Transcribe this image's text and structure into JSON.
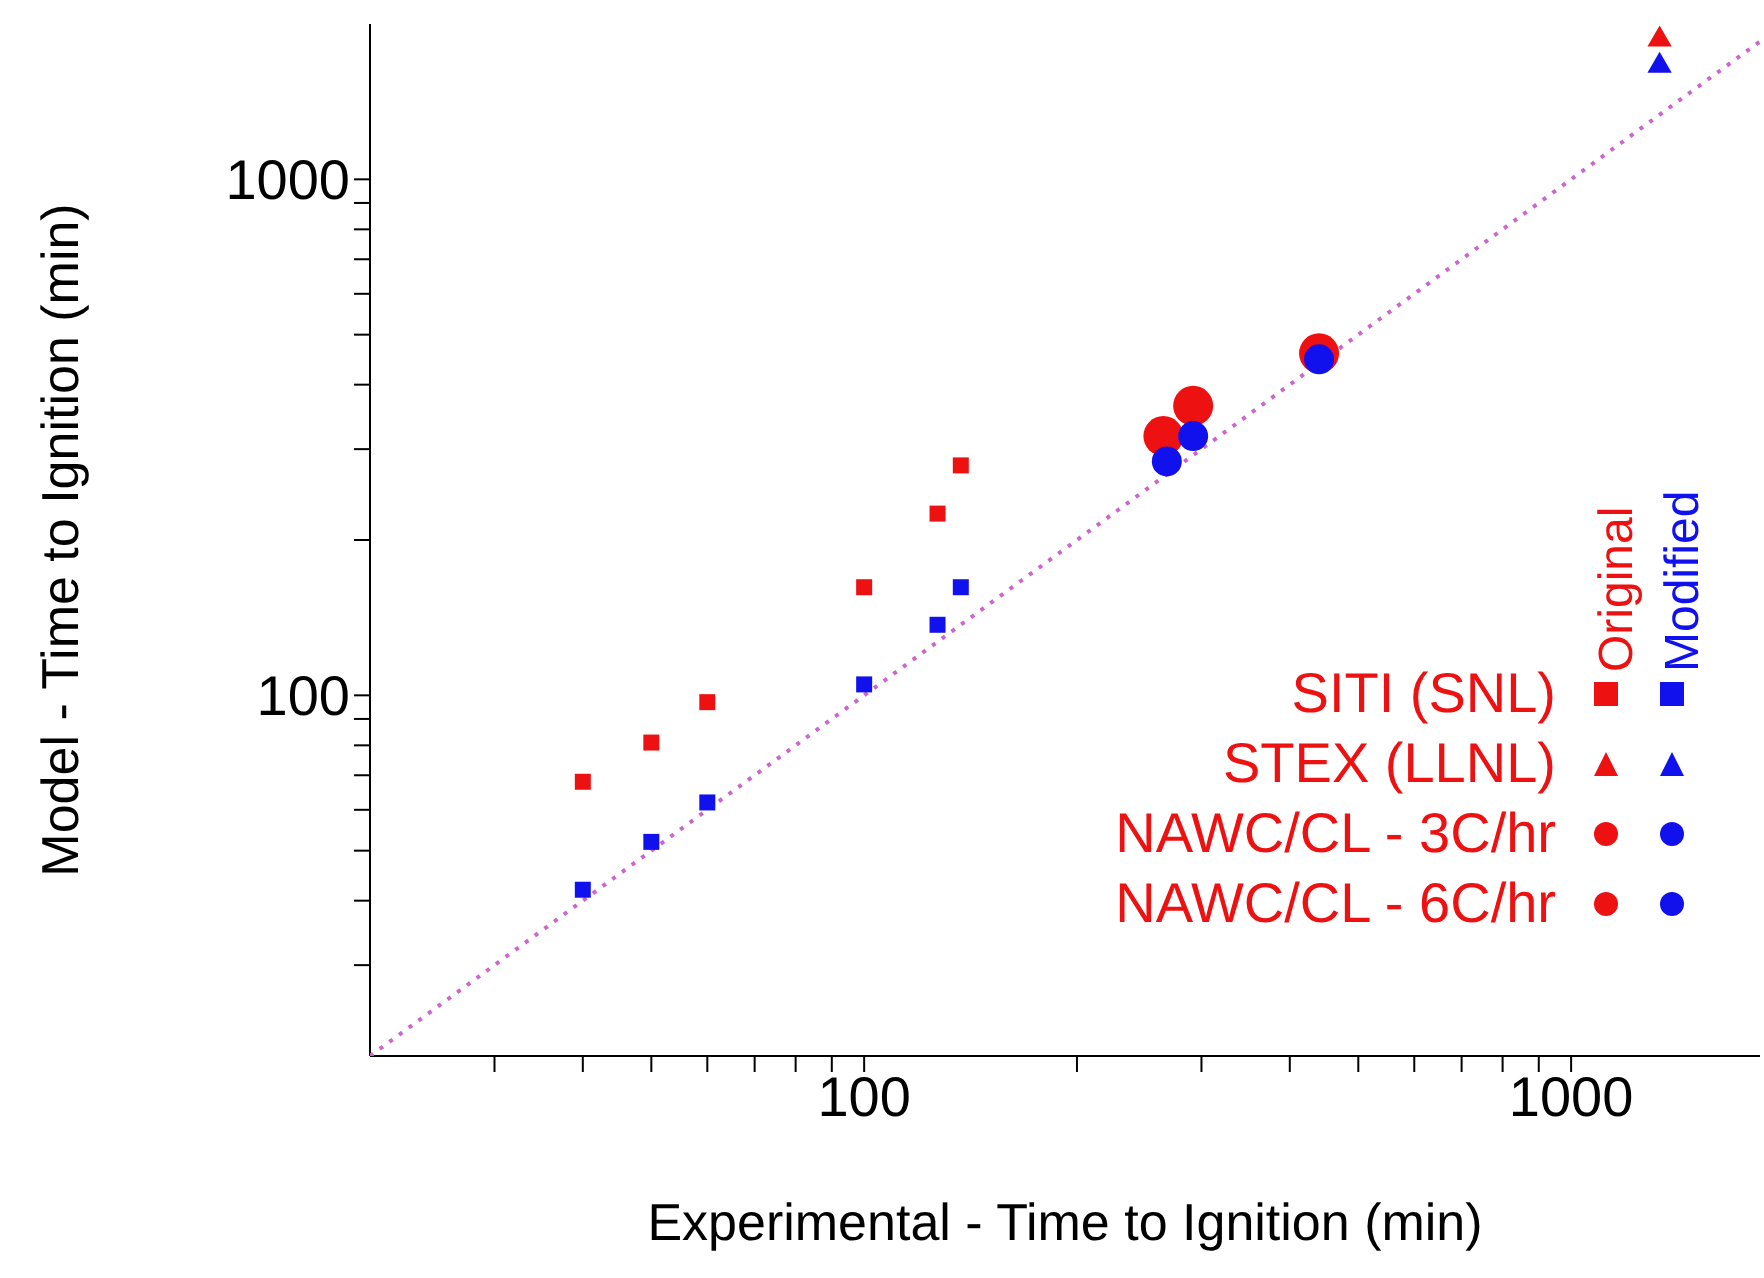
{
  "chart_data": {
    "type": "scatter",
    "xlabel": "Experimental - Time to Ignition (min)",
    "ylabel": "Model - Time to Ignition (min)",
    "log": "xy",
    "xlim": [
      20,
      1850
    ],
    "ylim": [
      20,
      2000
    ],
    "xticks": [
      {
        "value": 30,
        "label": null
      },
      {
        "value": 40,
        "label": null
      },
      {
        "value": 50,
        "label": null
      },
      {
        "value": 60,
        "label": null
      },
      {
        "value": 70,
        "label": null
      },
      {
        "value": 80,
        "label": null
      },
      {
        "value": 90,
        "label": null
      },
      100,
      {
        "value": 200,
        "label": null
      },
      {
        "value": 300,
        "label": null
      },
      {
        "value": 400,
        "label": null
      },
      {
        "value": 500,
        "label": null
      },
      {
        "value": 600,
        "label": null
      },
      {
        "value": 700,
        "label": null
      },
      {
        "value": 800,
        "label": null
      },
      {
        "value": 900,
        "label": null
      },
      1000
    ],
    "yticks": [
      {
        "value": 30,
        "label": null
      },
      {
        "value": 40,
        "label": null
      },
      {
        "value": 50,
        "label": null
      },
      {
        "value": 60,
        "label": null
      },
      {
        "value": 70,
        "label": null
      },
      {
        "value": 80,
        "label": null
      },
      {
        "value": 90,
        "label": null
      },
      100,
      {
        "value": 200,
        "label": null
      },
      {
        "value": 300,
        "label": null
      },
      {
        "value": 400,
        "label": null
      },
      {
        "value": 500,
        "label": null
      },
      {
        "value": 600,
        "label": null
      },
      {
        "value": 700,
        "label": null
      },
      {
        "value": 800,
        "label": null
      },
      {
        "value": 900,
        "label": null
      },
      1000
    ],
    "grid": false,
    "annotations": [
      "SITI (SNL)",
      "STEX (LLNL)",
      "NAWC/CL - 3C/hr",
      "NAWC/CL - 6C/hr",
      "Original",
      "Modified"
    ],
    "series": [
      {
        "type": "line",
        "color": "#cc66cc",
        "line_style": "dotted",
        "marker": "none",
        "x": [
          20,
          1850
        ],
        "values": [
          20,
          1850
        ]
      },
      {
        "color": "#ee1111",
        "marker": "square",
        "x": [
          40,
          50,
          60,
          100,
          127,
          137
        ],
        "values": [
          68,
          81,
          97,
          162,
          225,
          279
        ]
      },
      {
        "color": "#1111ee",
        "marker": "square",
        "x": [
          40,
          50,
          60,
          100,
          127,
          137
        ],
        "values": [
          42,
          52,
          62,
          105,
          137,
          162
        ]
      },
      {
        "color": "#ee1111",
        "marker": "triangle",
        "x": [
          1334
        ],
        "values": [
          1866
        ]
      },
      {
        "color": "#1111ee",
        "marker": "triangle",
        "x": [
          1334
        ],
        "values": [
          1660
        ]
      },
      {
        "color": "#ee1111",
        "marker": "circle",
        "x": [
          265,
          292
        ],
        "values": [
          318,
          364
        ]
      },
      {
        "color": "#1111ee",
        "marker": "circle",
        "x": [
          268,
          292
        ],
        "values": [
          284,
          318
        ]
      },
      {
        "color": "#ee1111",
        "marker": "circle",
        "x": [
          440
        ],
        "values": [
          460
        ]
      },
      {
        "color": "#1111ee",
        "marker": "circle",
        "x": [
          440
        ],
        "values": [
          448
        ]
      }
    ]
  }
}
